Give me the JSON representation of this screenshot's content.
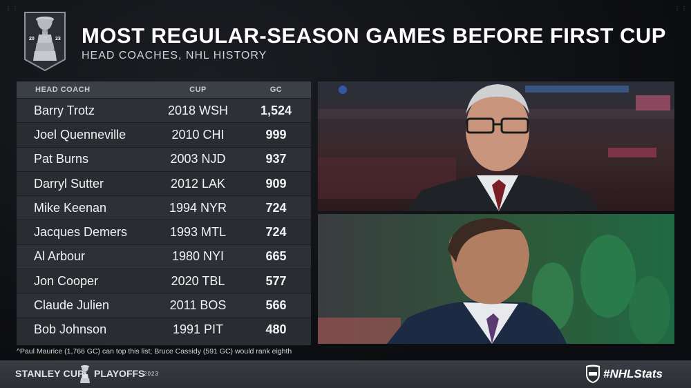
{
  "header": {
    "title": "MOST REGULAR-SEASON GAMES BEFORE FIRST CUP",
    "subtitle": "HEAD COACHES, NHL HISTORY",
    "badge_left": "20",
    "badge_right": "23"
  },
  "table": {
    "columns": [
      "HEAD COACH",
      "CUP",
      "GC"
    ],
    "rows": [
      {
        "coach": "Barry Trotz",
        "cup": "2018 WSH",
        "gc": "1,524"
      },
      {
        "coach": "Joel Quenneville",
        "cup": "2010 CHI",
        "gc": "999"
      },
      {
        "coach": "Pat Burns",
        "cup": "2003 NJD",
        "gc": "937"
      },
      {
        "coach": "Darryl Sutter",
        "cup": "2012 LAK",
        "gc": "909"
      },
      {
        "coach": "Mike Keenan",
        "cup": "1994 NYR",
        "gc": "724"
      },
      {
        "coach": "Jacques Demers",
        "cup": "1993 MTL",
        "gc": "724"
      },
      {
        "coach": "Al Arbour",
        "cup": "1980 NYI",
        "gc": "665"
      },
      {
        "coach": "Jon Cooper",
        "cup": "2020 TBL",
        "gc": "577"
      },
      {
        "coach": "Claude Julien",
        "cup": "2011 BOS",
        "gc": "566"
      },
      {
        "coach": "Bob Johnson",
        "cup": "1991 PIT",
        "gc": "480"
      }
    ]
  },
  "footnote": "^Paul Maurice (1,766 GC) can top this list; Bruce Cassidy (591 GC) would rank eighth",
  "footer": {
    "left_text": "STANLEY CUP",
    "mid_text": "PLAYOFFS",
    "year": "2023",
    "hashtag": "#NHLStats"
  },
  "colors": {
    "background": "#0c0d10",
    "table_bg": "#2a2d33",
    "header_bg": "#3b3f46",
    "footer_bg": "#34373d"
  },
  "icons": [
    "stanley-cup-icon",
    "nhl-shield-icon"
  ]
}
